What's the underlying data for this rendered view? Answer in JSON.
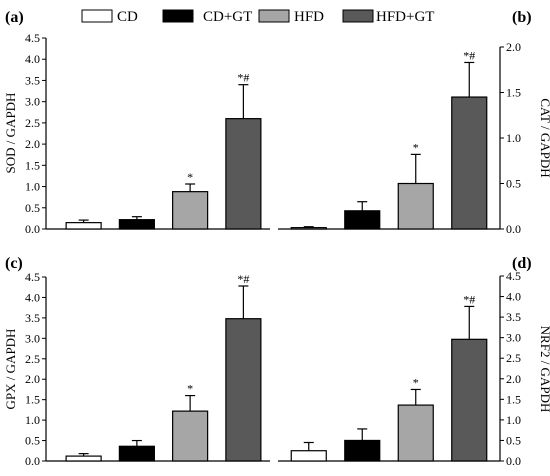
{
  "legend": [
    {
      "label": "CD",
      "color": "#ffffff"
    },
    {
      "label": "CD+GT",
      "color": "#000000"
    },
    {
      "label": "HFD",
      "color": "#a6a6a6"
    },
    {
      "label": "HFD+GT",
      "color": "#595959"
    }
  ],
  "colors": {
    "axis": "#000000",
    "bar_stroke": "#000000"
  },
  "chart_data": [
    {
      "type": "bar",
      "panel": "(a)",
      "ylabel": "SOD / GAPDH",
      "axis_side": "left",
      "ylim": [
        0,
        4.5
      ],
      "ticks": [
        "0.0",
        "0.5",
        "1.0",
        "1.5",
        "2.0",
        "2.5",
        "3.0",
        "3.5",
        "4.0",
        "4.5"
      ],
      "categories": [
        "CD",
        "CD+GT",
        "HFD",
        "HFD+GT"
      ],
      "values": [
        0.15,
        0.22,
        0.88,
        2.6
      ],
      "errors": [
        0.06,
        0.07,
        0.18,
        0.8
      ],
      "annotations": [
        "",
        "",
        "*",
        "*#"
      ]
    },
    {
      "type": "bar",
      "panel": "(b)",
      "ylabel": "CAT / GAPDH",
      "axis_side": "right",
      "ylim": [
        0,
        2.0
      ],
      "ticks": [
        "0.0",
        "0.5",
        "1.0",
        "1.5",
        "2.0"
      ],
      "categories": [
        "CD",
        "CD+GT",
        "HFD",
        "HFD+GT"
      ],
      "values": [
        0.015,
        0.2,
        0.5,
        1.45
      ],
      "errors": [
        0.01,
        0.1,
        0.32,
        0.38
      ],
      "annotations": [
        "",
        "",
        "*",
        "*#"
      ]
    },
    {
      "type": "bar",
      "panel": "(c)",
      "ylabel": "GPX / GAPDH",
      "axis_side": "left",
      "ylim": [
        0,
        4.5
      ],
      "ticks": [
        "0.0",
        "0.5",
        "1.0",
        "1.5",
        "2.0",
        "2.5",
        "3.0",
        "3.5",
        "4.0",
        "4.5"
      ],
      "categories": [
        "CD",
        "CD+GT",
        "HFD",
        "HFD+GT"
      ],
      "values": [
        0.12,
        0.36,
        1.22,
        3.48
      ],
      "errors": [
        0.06,
        0.14,
        0.38,
        0.8
      ],
      "annotations": [
        "",
        "",
        "*",
        "*#"
      ]
    },
    {
      "type": "bar",
      "panel": "(d)",
      "ylabel": "NRF2 / GAPDH",
      "axis_side": "right",
      "ylim": [
        0,
        4.5
      ],
      "ticks": [
        "0.0",
        "0.5",
        "1.0",
        "1.5",
        "2.0",
        "2.5",
        "3.0",
        "3.5",
        "4.0",
        "4.5"
      ],
      "categories": [
        "CD",
        "CD+GT",
        "HFD",
        "HFD+GT"
      ],
      "values": [
        0.25,
        0.5,
        1.36,
        2.96
      ],
      "errors": [
        0.2,
        0.28,
        0.38,
        0.8
      ],
      "annotations": [
        "",
        "",
        "*",
        "*#"
      ]
    }
  ]
}
